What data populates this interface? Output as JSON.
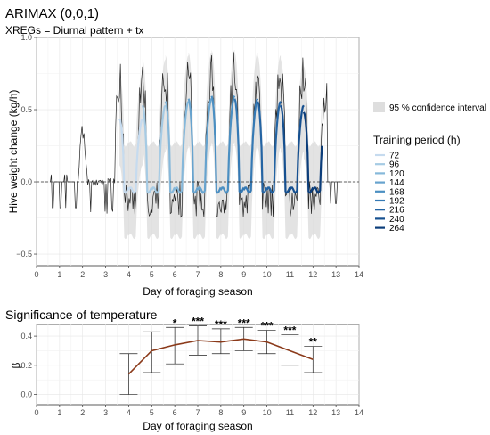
{
  "chart_data": [
    {
      "type": "line",
      "title": "ARIMAX (0,0,1)",
      "subtitle": "XREGs = Diurnal pattern + tx",
      "xlabel": "Day of foraging season",
      "ylabel": "Hive weight change (kg/h)",
      "xlim": [
        0,
        14
      ],
      "ylim": [
        -0.58,
        1.0
      ],
      "xticks": [
        0,
        1,
        2,
        3,
        4,
        5,
        6,
        7,
        8,
        9,
        10,
        11,
        12,
        13,
        14
      ],
      "yticks": [
        -0.5,
        0.0,
        0.5,
        1.0
      ],
      "ytick_labels": [
        "−0.5",
        "0.0",
        "0.5",
        "1.0"
      ],
      "reference_line_y": 0.0,
      "grid": true,
      "legend_position": "right",
      "confidence_label": "95 % confidence interval",
      "legend_title": "Training period (h)",
      "series": [
        {
          "name": "72",
          "color": "#c6dbef",
          "start_day": 3.6,
          "end_day": 4.6
        },
        {
          "name": "96",
          "color": "#a6cbe4",
          "start_day": 4.6,
          "end_day": 5.6
        },
        {
          "name": "120",
          "color": "#86b8da",
          "start_day": 5.6,
          "end_day": 6.6
        },
        {
          "name": "144",
          "color": "#67a3ce",
          "start_day": 6.6,
          "end_day": 7.6
        },
        {
          "name": "168",
          "color": "#4b8fc2",
          "start_day": 7.6,
          "end_day": 8.6
        },
        {
          "name": "192",
          "color": "#3579b4",
          "start_day": 8.6,
          "end_day": 9.6
        },
        {
          "name": "216",
          "color": "#2464a3",
          "start_day": 9.6,
          "end_day": 10.6
        },
        {
          "name": "240",
          "color": "#165090",
          "start_day": 10.6,
          "end_day": 11.6
        },
        {
          "name": "264",
          "color": "#0b3d7a",
          "start_day": 11.6,
          "end_day": 12.4
        }
      ],
      "daily_peaks_observed": [
        0.7,
        0.7,
        0.7,
        0.7,
        0.72,
        0.75,
        0.7,
        0.7,
        0.72,
        0.68,
        0.58
      ],
      "daily_peaks_predicted": [
        0.32,
        0.45,
        0.55,
        0.58,
        0.6,
        0.62,
        0.6,
        0.58,
        0.55,
        0.5,
        0.48
      ]
    },
    {
      "type": "line",
      "title": "Significance of temperature",
      "xlabel": "Day of foraging season",
      "ylabel": "β",
      "xlim": [
        0,
        14
      ],
      "ylim": [
        -0.07,
        0.48
      ],
      "xticks": [
        0,
        1,
        2,
        3,
        4,
        5,
        6,
        7,
        8,
        9,
        10,
        11,
        12,
        13,
        14
      ],
      "yticks": [
        0.0,
        0.2,
        0.4
      ],
      "ytick_labels": [
        "0.0",
        "0.2",
        "0.4"
      ],
      "grid": true,
      "x": [
        4,
        5,
        6,
        7,
        8,
        9,
        10,
        11,
        12
      ],
      "y": [
        0.14,
        0.3,
        0.34,
        0.37,
        0.36,
        0.38,
        0.36,
        0.3,
        0.24
      ],
      "ci_lower": [
        0.0,
        0.15,
        0.21,
        0.27,
        0.28,
        0.3,
        0.28,
        0.2,
        0.15
      ],
      "ci_upper": [
        0.28,
        0.43,
        0.46,
        0.47,
        0.45,
        0.46,
        0.44,
        0.41,
        0.33
      ],
      "significance": [
        "",
        "",
        "*",
        "***",
        "***",
        "***",
        "***",
        "***",
        "**"
      ],
      "line_color": "#8b3a1a"
    }
  ]
}
